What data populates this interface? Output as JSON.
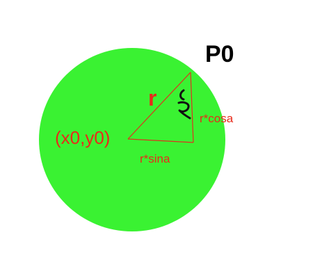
{
  "colors": {
    "background": "#ffffff",
    "circle_fill": "#3af232",
    "line_color": "#e0301e",
    "label_red": "#e82a1a",
    "label_black": "#000000",
    "angle_mark": "#111111"
  },
  "labels": {
    "point_label": "P0",
    "radius_label": "r",
    "center_label": "(x0,y0)",
    "vertical_leg_label": "r*cosa",
    "horizontal_leg_label": "r*sina",
    "angle_mark_label": "a"
  },
  "icons": {
    "angle_mark": "handwritten-alpha-icon"
  }
}
